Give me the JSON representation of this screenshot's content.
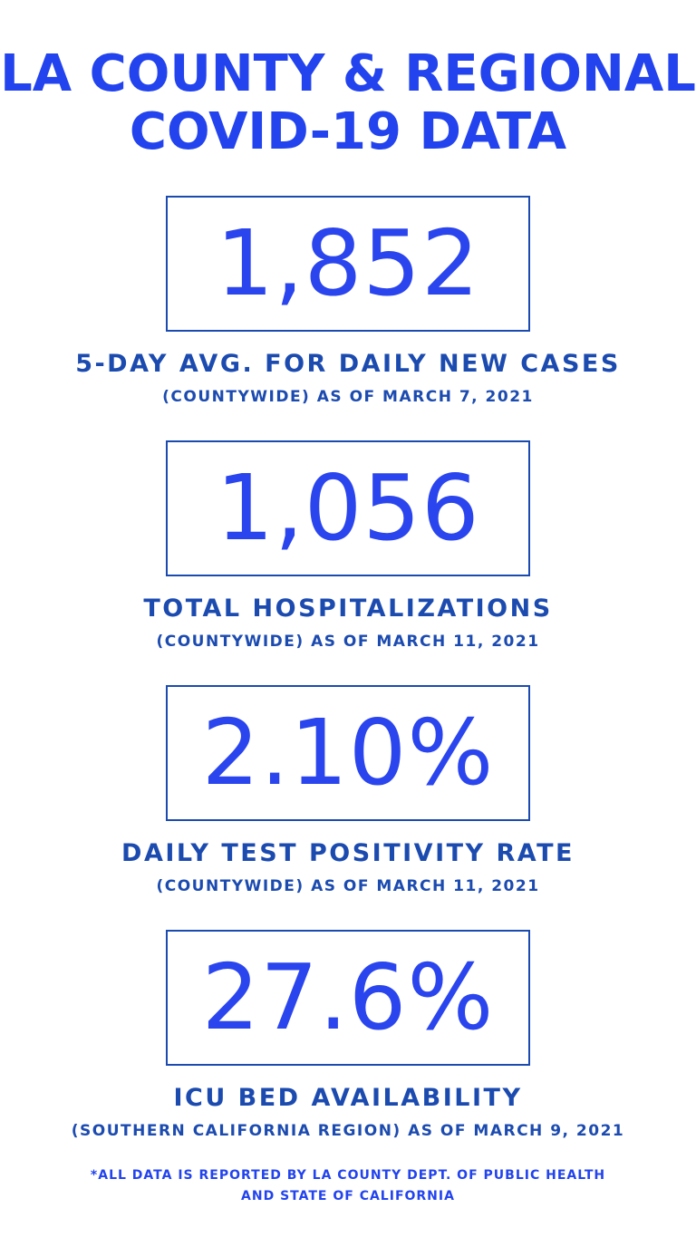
{
  "header": {
    "title_lines": [
      "LA COUNTY & REGIONAL",
      "COVID-19 DATA"
    ]
  },
  "stats": [
    {
      "value": "1,852",
      "label": "5-DAY AVG. FOR DAILY NEW CASES",
      "sublabel": "(COUNTYWIDE) AS OF MARCH 7, 2021"
    },
    {
      "value": "1,056",
      "label": "TOTAL HOSPITALIZATIONS",
      "sublabel": "(COUNTYWIDE) AS OF MARCH 11, 2021"
    },
    {
      "value": "2.10%",
      "label": "DAILY TEST POSITIVITY RATE",
      "sublabel": "(COUNTYWIDE) AS OF MARCH 11, 2021"
    },
    {
      "value": "27.6%",
      "label": "ICU BED AVAILABILITY",
      "sublabel": "(SOUTHERN CALIFORNIA REGION) AS OF MARCH 9, 2021"
    }
  ],
  "footnote": {
    "lines": [
      "*ALL DATA IS REPORTED BY LA COUNTY DEPT. OF PUBLIC HEALTH",
      "AND STATE OF CALIFORNIA"
    ]
  }
}
